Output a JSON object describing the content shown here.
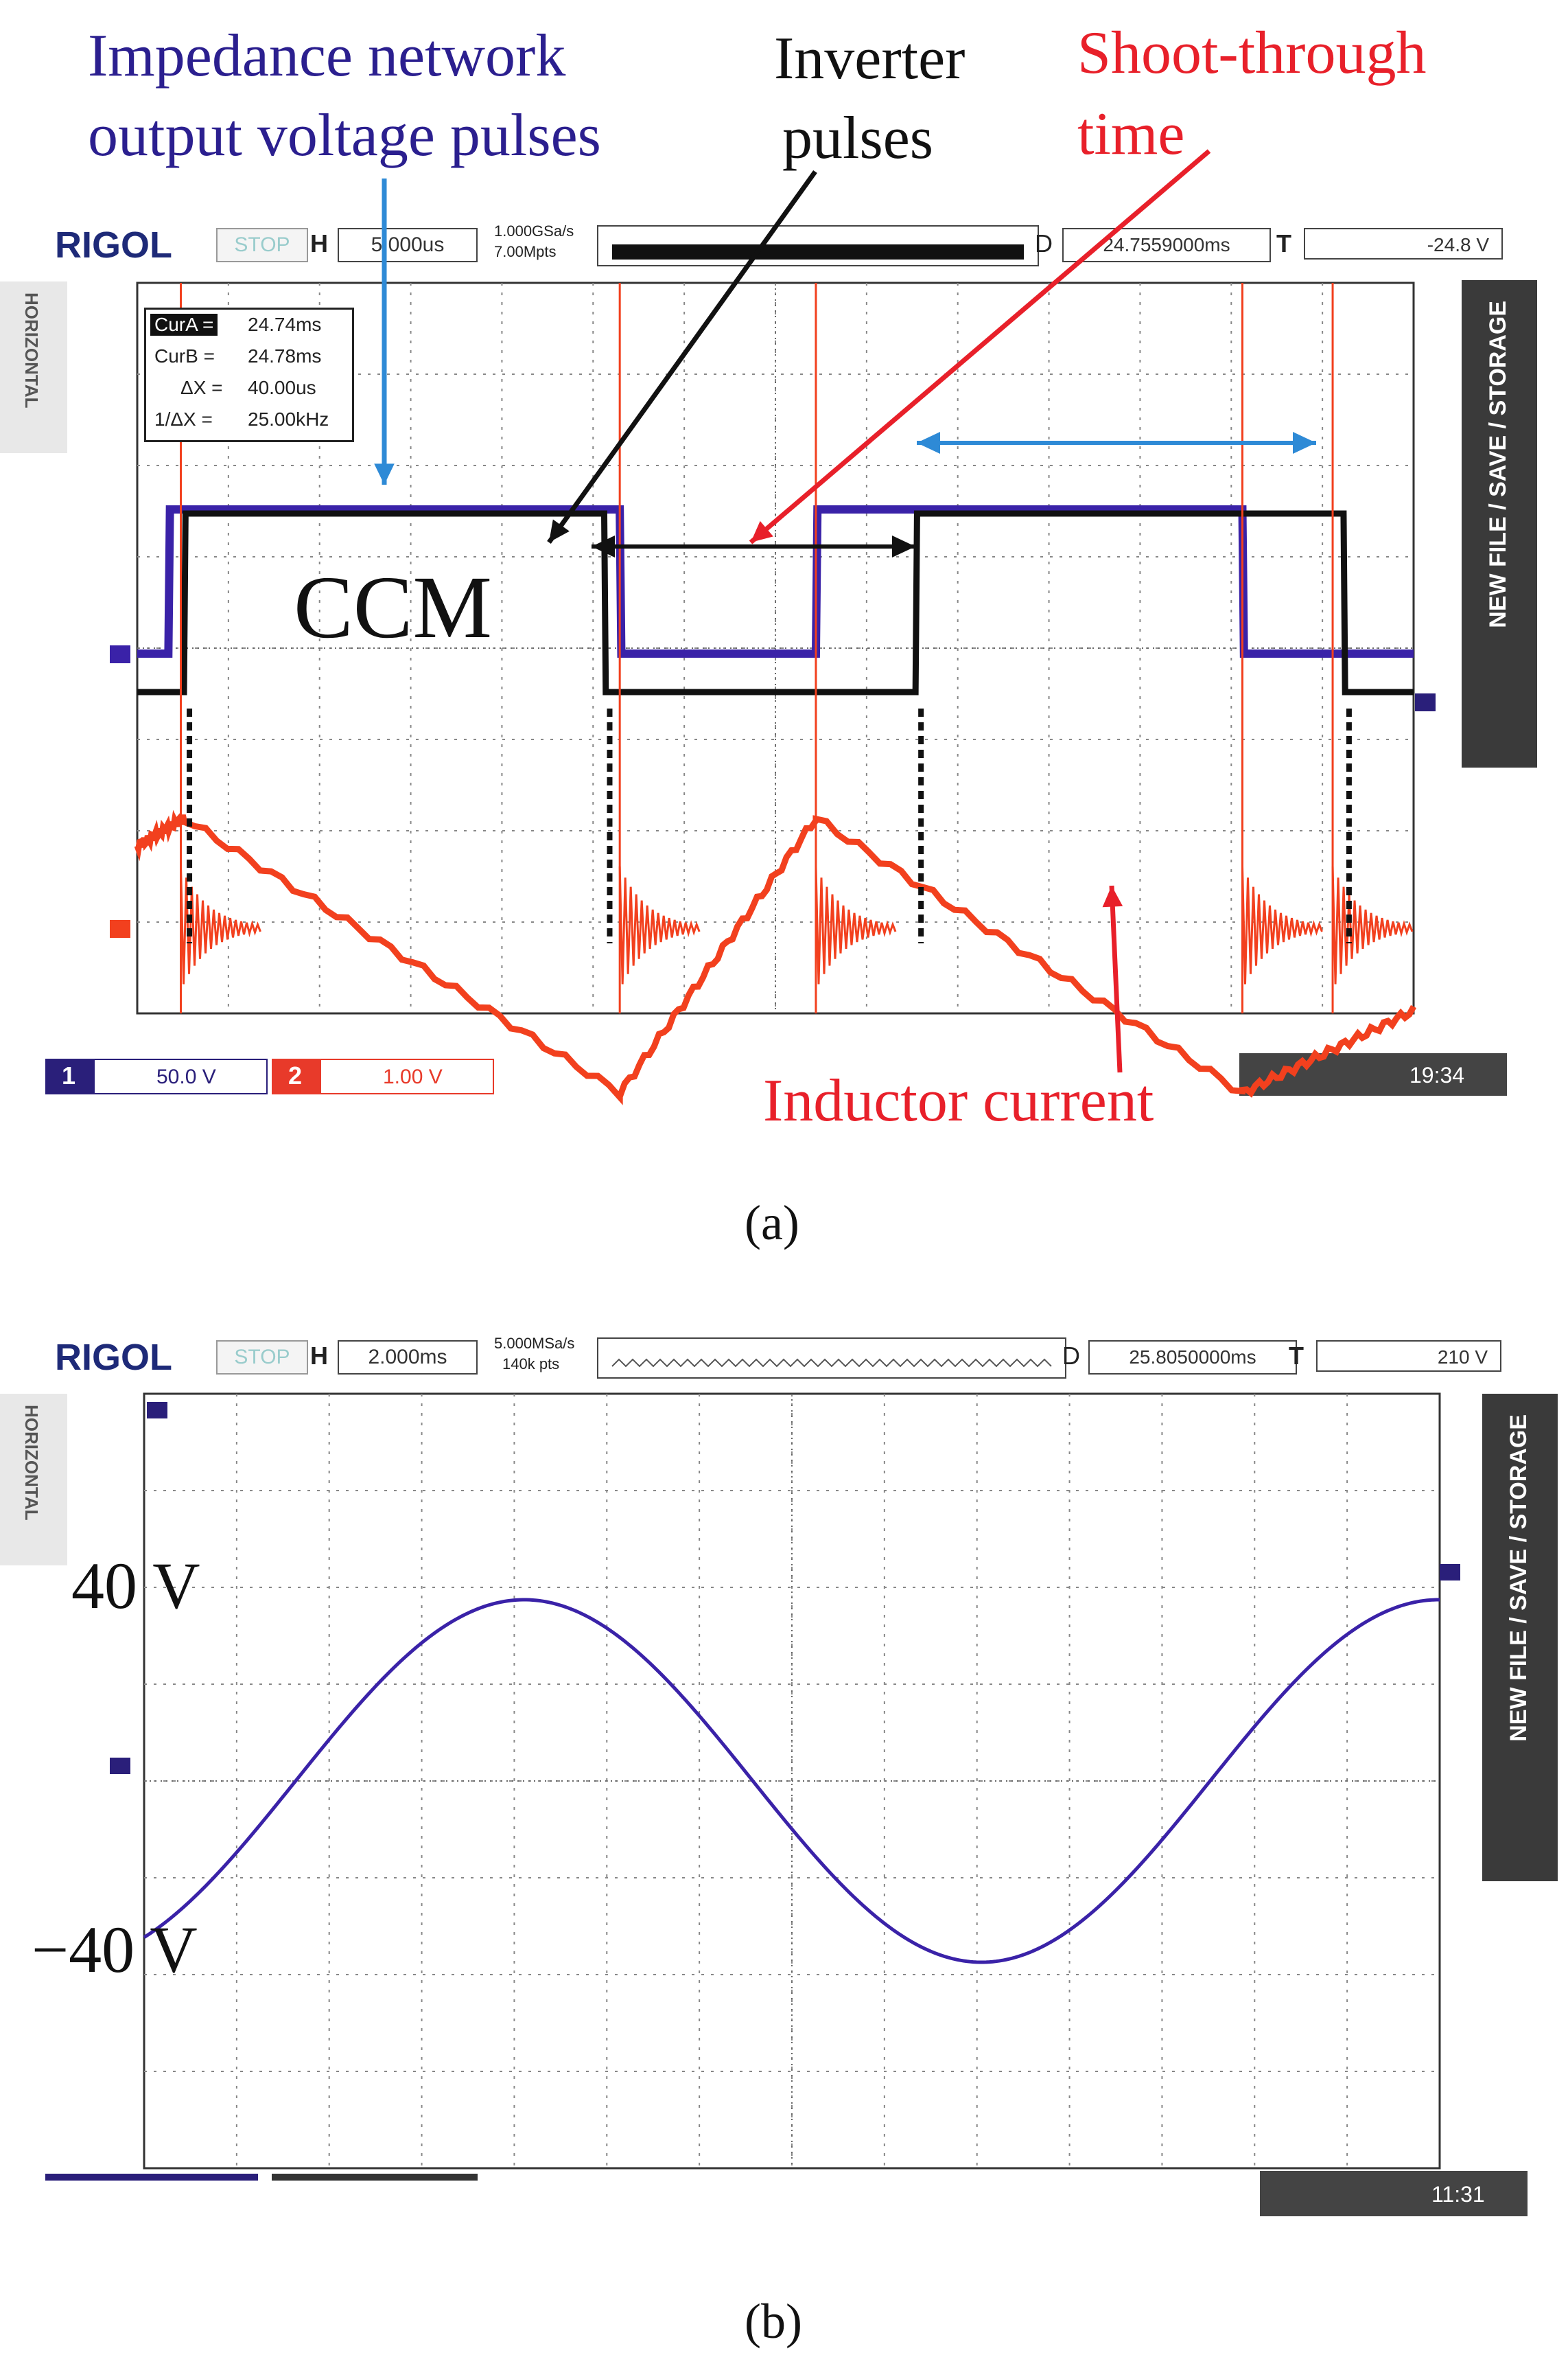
{
  "figure_a": {
    "annotations": {
      "impedance_line1": "Impedance network",
      "impedance_line2": "output voltage pulses",
      "inverter_line1": "Inverter",
      "inverter_line2": "pulses",
      "shoot_line1": "Shoot-through",
      "shoot_line2": "time",
      "ccm": "CCM",
      "inductor": "Inductor current"
    },
    "scope": {
      "brand": "RIGOL",
      "status": "STOP",
      "h_label": "H",
      "timebase": "5.000us",
      "sample_rate": "1.000GSa/s",
      "mem_depth": "7.00Mpts",
      "d_label": "D",
      "delay": "24.7559000ms",
      "t_label": "T",
      "trig_level": "-24.8 V",
      "side_left": "HORIZONTAL",
      "side_right": "NEW FILE / SAVE / STORAGE",
      "cursors": [
        {
          "label": "CurA =",
          "value": "24.74ms"
        },
        {
          "label": "CurB =",
          "value": "24.78ms"
        },
        {
          "label": "ΔX =",
          "value": "40.00us"
        },
        {
          "label": "1/ΔX =",
          "value": "25.00kHz"
        }
      ],
      "ch1_num": "1",
      "ch1_scale": "50.0 V",
      "ch2_num": "2",
      "ch2_scale": "1.00 V",
      "clock": "19:34"
    },
    "caption": "(a)",
    "colors": {
      "ch1": "#3a22a8",
      "ch2": "#f2401e",
      "pwm": "#111111",
      "arrow_blue": "#2e8ad6"
    }
  },
  "figure_b": {
    "annotations": {
      "v_pos": "40 V",
      "v_neg": "−40 V"
    },
    "scope": {
      "brand": "RIGOL",
      "status": "STOP",
      "h_label": "H",
      "timebase": "2.000ms",
      "sample_rate": "5.000MSa/s",
      "mem_depth": "140k pts",
      "d_label": "D",
      "delay": "25.8050000ms",
      "t_label": "T",
      "trig_level": "210 V",
      "side_left": "HORIZONTAL",
      "side_right": "NEW FILE / SAVE / STORAGE",
      "clock": "11:31"
    },
    "caption": "(b)"
  },
  "chart_data": [
    {
      "type": "line",
      "x_unit": "us",
      "series": [
        {
          "name": "Impedance network output voltage pulses",
          "x": [
            0,
            2,
            2.1,
            31,
            31.1,
            43.6,
            43.7,
            71,
            71.1,
            82
          ],
          "y": [
            1,
            1,
            8,
            8,
            1,
            1,
            8,
            8,
            1,
            1
          ]
        },
        {
          "name": "Inverter pulses",
          "x": [
            0,
            3,
            3.1,
            30,
            30.1,
            50,
            50.1,
            77.5,
            77.6,
            82
          ],
          "y": [
            0,
            0,
            1,
            1,
            0,
            0,
            1,
            1,
            0,
            0
          ]
        },
        {
          "name": "Inductor current",
          "x": [
            0,
            3,
            31,
            43.6,
            71,
            82
          ],
          "y": [
            -0.6,
            -0.4,
            -2.4,
            -0.4,
            -2.4,
            -1.8
          ]
        }
      ],
      "annotations": [
        "Impedance network output voltage pulses",
        "Inverter pulses",
        "Shoot-through time",
        "CCM",
        "Inductor current"
      ]
    },
    {
      "type": "line",
      "x_unit": "ms",
      "y_unit": "V",
      "series": [
        {
          "name": "Output voltage",
          "amplitude": 40,
          "period_ms": 13.0,
          "x": [
            0,
            2,
            4,
            5.3,
            7,
            9,
            11.8,
            14,
            16.5,
            18.2
          ],
          "y": [
            -34,
            -10,
            28,
            40,
            26,
            -14,
            -40,
            -24,
            20,
            40
          ]
        }
      ],
      "annotations": [
        "40 V",
        "−40 V"
      ]
    }
  ]
}
